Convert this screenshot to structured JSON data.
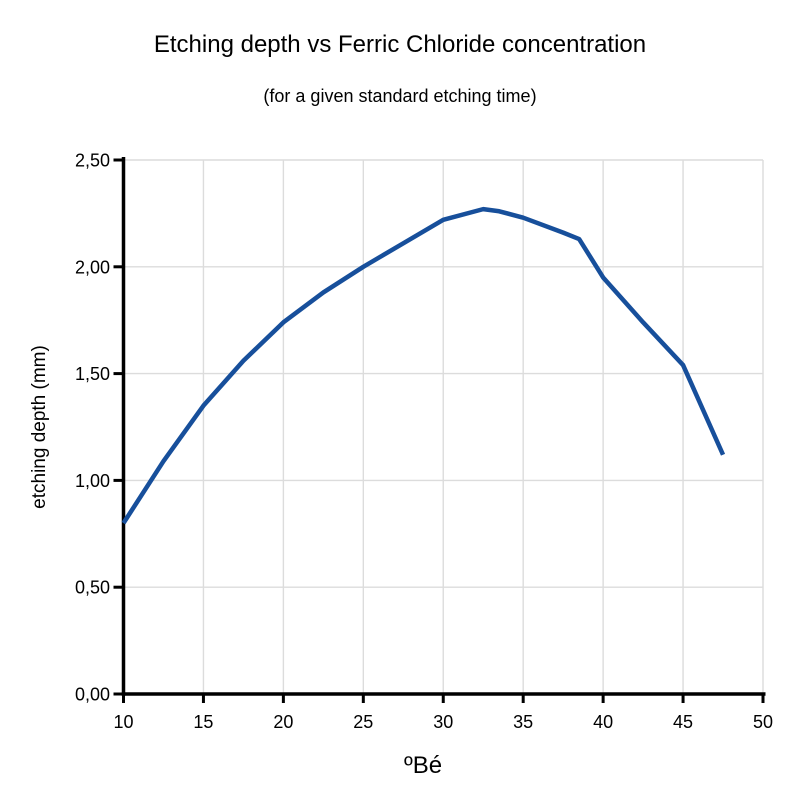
{
  "title": "Etching depth vs Ferric Chloride concentration",
  "subtitle": "(for a given standard etching time)",
  "chart_data": {
    "type": "line",
    "title": "Etching depth vs Ferric Chloride concentration",
    "subtitle": "(for a given standard etching time)",
    "xlabel": "ºBé",
    "ylabel": "etching depth (mm)",
    "xlim": [
      10,
      50
    ],
    "ylim": [
      0.0,
      2.5
    ],
    "grid": true,
    "legend": "none",
    "x_ticks": [
      10,
      15,
      20,
      25,
      30,
      35,
      40,
      45,
      50
    ],
    "y_ticks": [
      {
        "value": 0.0,
        "label": "0,00"
      },
      {
        "value": 0.5,
        "label": "0,50"
      },
      {
        "value": 1.0,
        "label": "1,00"
      },
      {
        "value": 1.5,
        "label": "1,50"
      },
      {
        "value": 2.0,
        "label": "2,00"
      },
      {
        "value": 2.5,
        "label": "2,50"
      }
    ],
    "colors": {
      "line": "#174F9B",
      "axis": "#000000",
      "grid": "#DCDCDC",
      "background": "#FFFFFF"
    },
    "series": [
      {
        "name": "etching depth",
        "x": [
          10,
          12.5,
          15,
          17.5,
          20,
          22.5,
          25,
          27.5,
          30,
          32.5,
          33.5,
          35,
          37.5,
          38.5,
          40,
          42.5,
          45,
          47.5
        ],
        "y": [
          0.8,
          1.09,
          1.35,
          1.56,
          1.74,
          1.88,
          2.0,
          2.11,
          2.22,
          2.27,
          2.26,
          2.23,
          2.16,
          2.13,
          1.95,
          1.74,
          1.54,
          1.12
        ]
      }
    ]
  }
}
